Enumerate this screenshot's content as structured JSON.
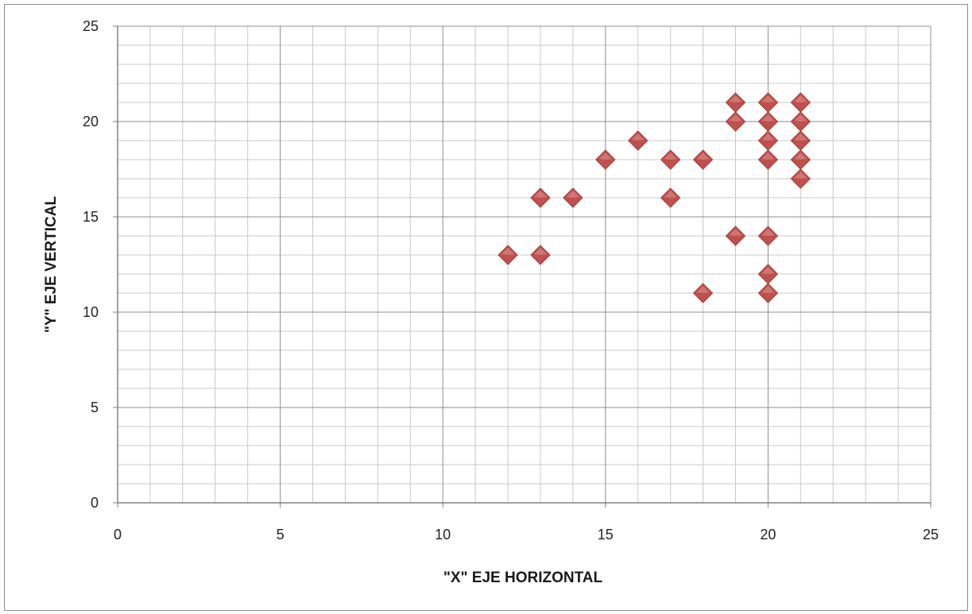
{
  "chart_data": {
    "type": "scatter",
    "title": "",
    "xlabel": "\"X\" EJE HORIZONTAL",
    "ylabel": "\"Y\"  EJE  VERTICAL",
    "xlim": [
      0,
      25
    ],
    "ylim": [
      0,
      25
    ],
    "x_ticks": [
      0,
      5,
      10,
      15,
      20,
      25
    ],
    "y_ticks": [
      0,
      5,
      10,
      15,
      20,
      25
    ],
    "x_tick_labels": [
      "0",
      "5",
      "10",
      "15",
      "20",
      "25"
    ],
    "y_tick_labels": [
      "0",
      "5",
      "10",
      "15",
      "20",
      "25"
    ],
    "major_grid_step": 5,
    "minor_grid_x_step": 1,
    "minor_grid_y_step": 1,
    "grid": true,
    "legend": "none",
    "marker": "diamond",
    "marker_color": "#c0504d",
    "series": [
      {
        "points": [
          {
            "x": 12,
            "y": 13
          },
          {
            "x": 13,
            "y": 13
          },
          {
            "x": 13,
            "y": 16
          },
          {
            "x": 14,
            "y": 16
          },
          {
            "x": 15,
            "y": 18
          },
          {
            "x": 16,
            "y": 19
          },
          {
            "x": 17,
            "y": 18
          },
          {
            "x": 17,
            "y": 16
          },
          {
            "x": 18,
            "y": 18
          },
          {
            "x": 18,
            "y": 11
          },
          {
            "x": 19,
            "y": 21
          },
          {
            "x": 19,
            "y": 20
          },
          {
            "x": 19,
            "y": 14
          },
          {
            "x": 20,
            "y": 21
          },
          {
            "x": 20,
            "y": 20
          },
          {
            "x": 20,
            "y": 19
          },
          {
            "x": 20,
            "y": 18
          },
          {
            "x": 20,
            "y": 14
          },
          {
            "x": 20,
            "y": 12
          },
          {
            "x": 20,
            "y": 11
          },
          {
            "x": 21,
            "y": 21
          },
          {
            "x": 21,
            "y": 20
          },
          {
            "x": 21,
            "y": 19
          },
          {
            "x": 21,
            "y": 18
          },
          {
            "x": 21,
            "y": 17
          }
        ]
      }
    ]
  }
}
